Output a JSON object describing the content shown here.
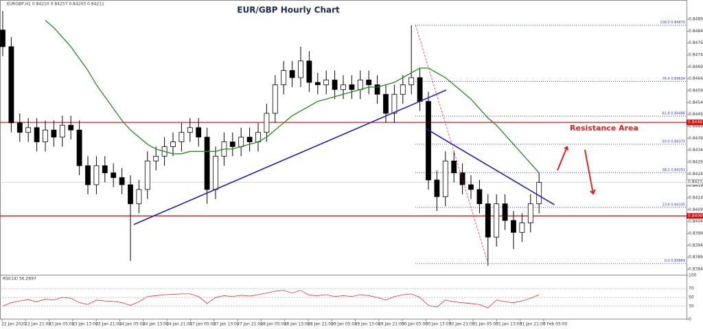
{
  "chart_data": {
    "type": "candlestick",
    "title": "EUR/GBP Hourly Chart",
    "symbol": "EURGBP,H1 0.84210 0.84257 0.84203 0.84211",
    "annotation": "Resistance Area",
    "open": [
      0.8485,
      0.8478,
      0.8446,
      0.8442,
      0.8444,
      0.8438,
      0.8443,
      0.844,
      0.8445,
      0.8443,
      0.8428,
      0.842,
      0.8428,
      0.8425,
      0.8423,
      0.842,
      0.8412,
      0.8418,
      0.843,
      0.8432,
      0.8436,
      0.8438,
      0.8442,
      0.8444,
      0.844,
      0.8418,
      0.8432,
      0.8438,
      0.8436,
      0.844,
      0.8438,
      0.8442,
      0.845,
      0.8462,
      0.8468,
      0.8465,
      0.8472,
      0.8463,
      0.8462,
      0.8464,
      0.846,
      0.8462,
      0.846,
      0.8464,
      0.8462,
      0.8458,
      0.845,
      0.8458,
      0.8462,
      0.8465,
      0.8455,
      0.8422,
      0.8415,
      0.843,
      0.8425,
      0.842,
      0.8418,
      0.8412,
      0.8398,
      0.8412,
      0.8405,
      0.84,
      0.8404,
      0.8412
    ],
    "high": [
      0.8493,
      0.8482,
      0.845,
      0.8448,
      0.8448,
      0.8447,
      0.8447,
      0.8449,
      0.8449,
      0.8447,
      0.8432,
      0.8432,
      0.8432,
      0.8429,
      0.8427,
      0.8424,
      0.8422,
      0.8434,
      0.8436,
      0.844,
      0.8442,
      0.8446,
      0.8448,
      0.8448,
      0.8444,
      0.8436,
      0.8442,
      0.8442,
      0.8444,
      0.8444,
      0.8446,
      0.8454,
      0.8466,
      0.8472,
      0.8472,
      0.8478,
      0.8476,
      0.8467,
      0.8468,
      0.8468,
      0.8466,
      0.8466,
      0.8468,
      0.8468,
      0.8466,
      0.8462,
      0.8462,
      0.8466,
      0.8487,
      0.8469,
      0.8459,
      0.8426,
      0.8434,
      0.8434,
      0.8429,
      0.8424,
      0.8422,
      0.8416,
      0.8416,
      0.8416,
      0.8409,
      0.8408,
      0.8416,
      0.8425
    ],
    "low": [
      0.8474,
      0.8442,
      0.8438,
      0.8438,
      0.8434,
      0.8434,
      0.8436,
      0.8436,
      0.8439,
      0.8424,
      0.8416,
      0.8416,
      0.8421,
      0.8419,
      0.8416,
      0.8388,
      0.8408,
      0.8414,
      0.8426,
      0.8428,
      0.8432,
      0.8434,
      0.8438,
      0.8436,
      0.8412,
      0.8414,
      0.8428,
      0.8432,
      0.8432,
      0.8434,
      0.8434,
      0.8438,
      0.8446,
      0.8458,
      0.8461,
      0.8461,
      0.8459,
      0.8458,
      0.8458,
      0.8456,
      0.8456,
      0.8456,
      0.8456,
      0.8458,
      0.8454,
      0.8446,
      0.8446,
      0.8454,
      0.8458,
      0.8451,
      0.8418,
      0.8409,
      0.8411,
      0.8421,
      0.8416,
      0.8414,
      0.8408,
      0.8386,
      0.8394,
      0.8401,
      0.8393,
      0.8396,
      0.84,
      0.8408
    ],
    "close": [
      0.8478,
      0.8446,
      0.8442,
      0.8444,
      0.8438,
      0.8443,
      0.844,
      0.8445,
      0.8443,
      0.8428,
      0.842,
      0.8428,
      0.8425,
      0.8423,
      0.842,
      0.8412,
      0.8418,
      0.843,
      0.8432,
      0.8436,
      0.8438,
      0.8442,
      0.8444,
      0.844,
      0.8418,
      0.8432,
      0.8438,
      0.8436,
      0.844,
      0.8438,
      0.8442,
      0.845,
      0.8462,
      0.8468,
      0.8465,
      0.8472,
      0.8463,
      0.8462,
      0.8464,
      0.846,
      0.8462,
      0.846,
      0.8464,
      0.8462,
      0.8458,
      0.845,
      0.8458,
      0.8462,
      0.8465,
      0.8455,
      0.8422,
      0.8415,
      0.843,
      0.8425,
      0.842,
      0.8418,
      0.8412,
      0.8398,
      0.8412,
      0.8405,
      0.84,
      0.8404,
      0.8412,
      0.8421
    ],
    "ma": {
      "color": "#1e8c1e",
      "values": [
        null,
        null,
        null,
        null,
        null,
        0.8489,
        0.8486,
        0.8482,
        0.8478,
        0.8473,
        0.8468,
        0.8462,
        0.8457,
        0.8452,
        0.8447,
        0.8443,
        0.844,
        0.8437,
        0.8435,
        0.8434,
        0.8433,
        0.8433,
        0.8434,
        0.8434,
        0.8434,
        0.8434,
        0.8435,
        0.8435,
        0.8436,
        0.8437,
        0.8438,
        0.844,
        0.8443,
        0.8446,
        0.8449,
        0.8451,
        0.8453,
        0.8455,
        0.8456,
        0.8457,
        0.8458,
        0.8459,
        0.846,
        0.8461,
        0.8461,
        0.8462,
        0.8463,
        0.8465,
        0.8467,
        0.8469,
        0.8469,
        0.8467,
        0.8465,
        0.8462,
        0.8459,
        0.8456,
        0.8452,
        0.8448,
        0.8445,
        0.8441,
        0.8437,
        0.8433,
        0.8429,
        0.8425
      ]
    },
    "ylim": [
      0.83822,
      0.84976
    ],
    "yticks": [
      0.84895,
      0.84845,
      0.84795,
      0.84745,
      0.84695,
      0.84645,
      0.84595,
      0.84545,
      0.84495,
      0.84445,
      0.84395,
      0.84345,
      0.84295,
      0.84245,
      0.84195,
      0.84145,
      0.84095,
      0.84045,
      0.83995,
      0.83945,
      0.83895,
      0.83845
    ],
    "xtick_labels": [
      "22 Jan 2020",
      "22 Jan 21:00",
      "23 Jan 05:00",
      "23 Jan 13:00",
      "23 Jan 21:00",
      "24 Jan 05:00",
      "24 Jan 13:00",
      "24 Jan 21:00",
      "27 Jan 05:00",
      "27 Jan 13:00",
      "27 Jan 21:00",
      "28 Jan 05:00",
      "28 Jan 13:00",
      "28 Jan 21:00",
      "29 Jan 05:00",
      "29 Jan 13:00",
      "29 Jan 21:00",
      "30 Jan 05:00",
      "30 Jan 13:00",
      "30 Jan 21:00",
      "31 Jan 05:00",
      "31 Jan 13:00",
      "31 Jan 21:00",
      "3 Feb 05:00"
    ],
    "levels": [
      {
        "value": 0.84462,
        "color": "#e00000"
      },
      {
        "value": 0.84069,
        "color": "#e00000"
      }
    ],
    "current_price": 0.84211,
    "fib": [
      {
        "value": 0.8487,
        "label": "100.0 0.84870"
      },
      {
        "value": 0.84634,
        "label": "76.4 0.84634"
      },
      {
        "value": 0.84488,
        "label": "61.8 0.84488"
      },
      {
        "value": 0.8437,
        "label": "50.0 0.84370"
      },
      {
        "value": 0.84251,
        "label": "38.2 0.84251"
      },
      {
        "value": 0.84105,
        "label": "23.6 0.84105"
      },
      {
        "value": 0.83869,
        "label": "0.0 0.83869"
      }
    ],
    "trendlines": [
      {
        "color": "#1a1acc",
        "x": [
          15.4,
          52.1
        ],
        "y": [
          0.84033,
          0.84598
        ]
      },
      {
        "color": "#1a1acc",
        "x": [
          49.7,
          64.8
        ],
        "y": [
          0.84436,
          0.84116
        ]
      },
      {
        "color": "#e03030",
        "dashed": true,
        "x": [
          48.5,
          57
        ],
        "y": [
          0.8487,
          0.8387
        ]
      }
    ],
    "rsi": {
      "label": "RSI(14) 56.2697",
      "color": "#e03030",
      "ylim": [
        0,
        100
      ],
      "yticks": [
        100,
        70,
        50,
        30,
        0
      ],
      "values": [
        30,
        38,
        42,
        45,
        40,
        46,
        44,
        50,
        48,
        38,
        34,
        44,
        42,
        41,
        38,
        32,
        40,
        52,
        54,
        56,
        57,
        58,
        58,
        52,
        36,
        50,
        54,
        52,
        55,
        53,
        56,
        60,
        64,
        66,
        60,
        66,
        55,
        54,
        56,
        52,
        54,
        52,
        56,
        54,
        50,
        44,
        52,
        56,
        58,
        50,
        32,
        28,
        44,
        40,
        38,
        36,
        34,
        26,
        44,
        40,
        38,
        42,
        48,
        56
      ]
    }
  }
}
